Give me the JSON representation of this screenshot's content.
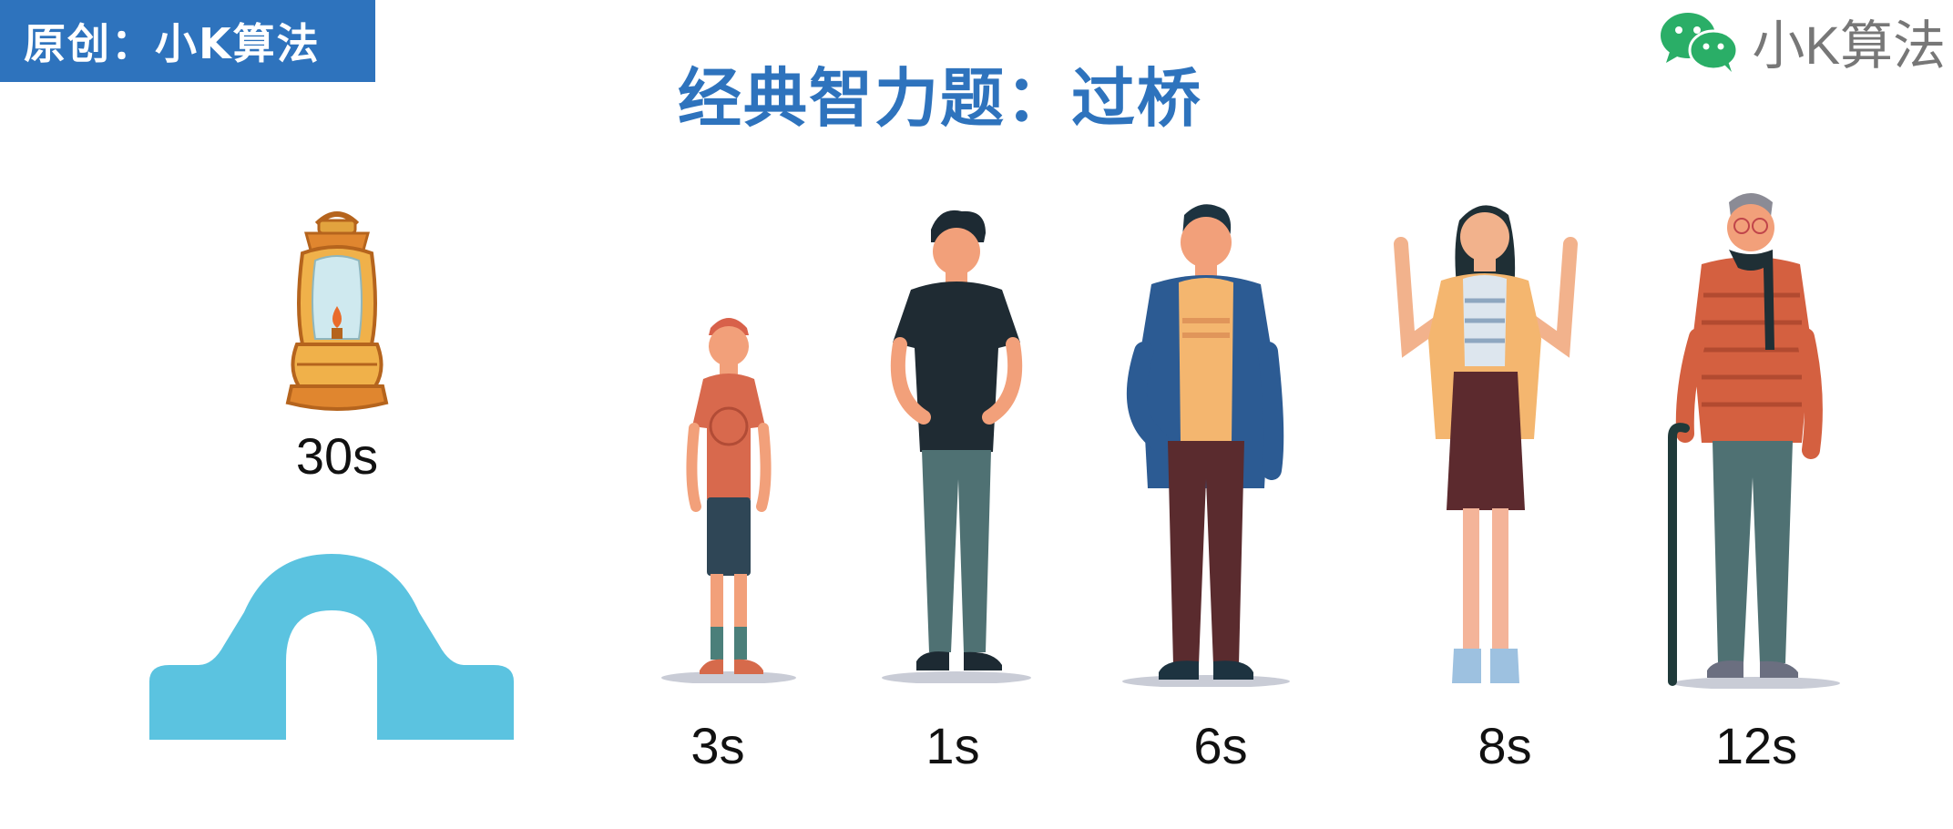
{
  "badge": {
    "label": "原创：小K算法"
  },
  "title": "经典智力题：过桥",
  "logo": {
    "text": "小K算法",
    "icon": "wechat-icon",
    "color": "#2aae67"
  },
  "lamp": {
    "time": "30s",
    "icon": "oil-lantern-icon"
  },
  "bridge": {
    "icon": "arch-bridge-icon",
    "color": "#5bc3e0"
  },
  "people": [
    {
      "id": "boy",
      "time": "3s"
    },
    {
      "id": "young-man",
      "time": "1s"
    },
    {
      "id": "man",
      "time": "6s"
    },
    {
      "id": "woman",
      "time": "8s"
    },
    {
      "id": "old-man",
      "time": "12s"
    }
  ],
  "colors": {
    "accent": "#2e73bd"
  }
}
